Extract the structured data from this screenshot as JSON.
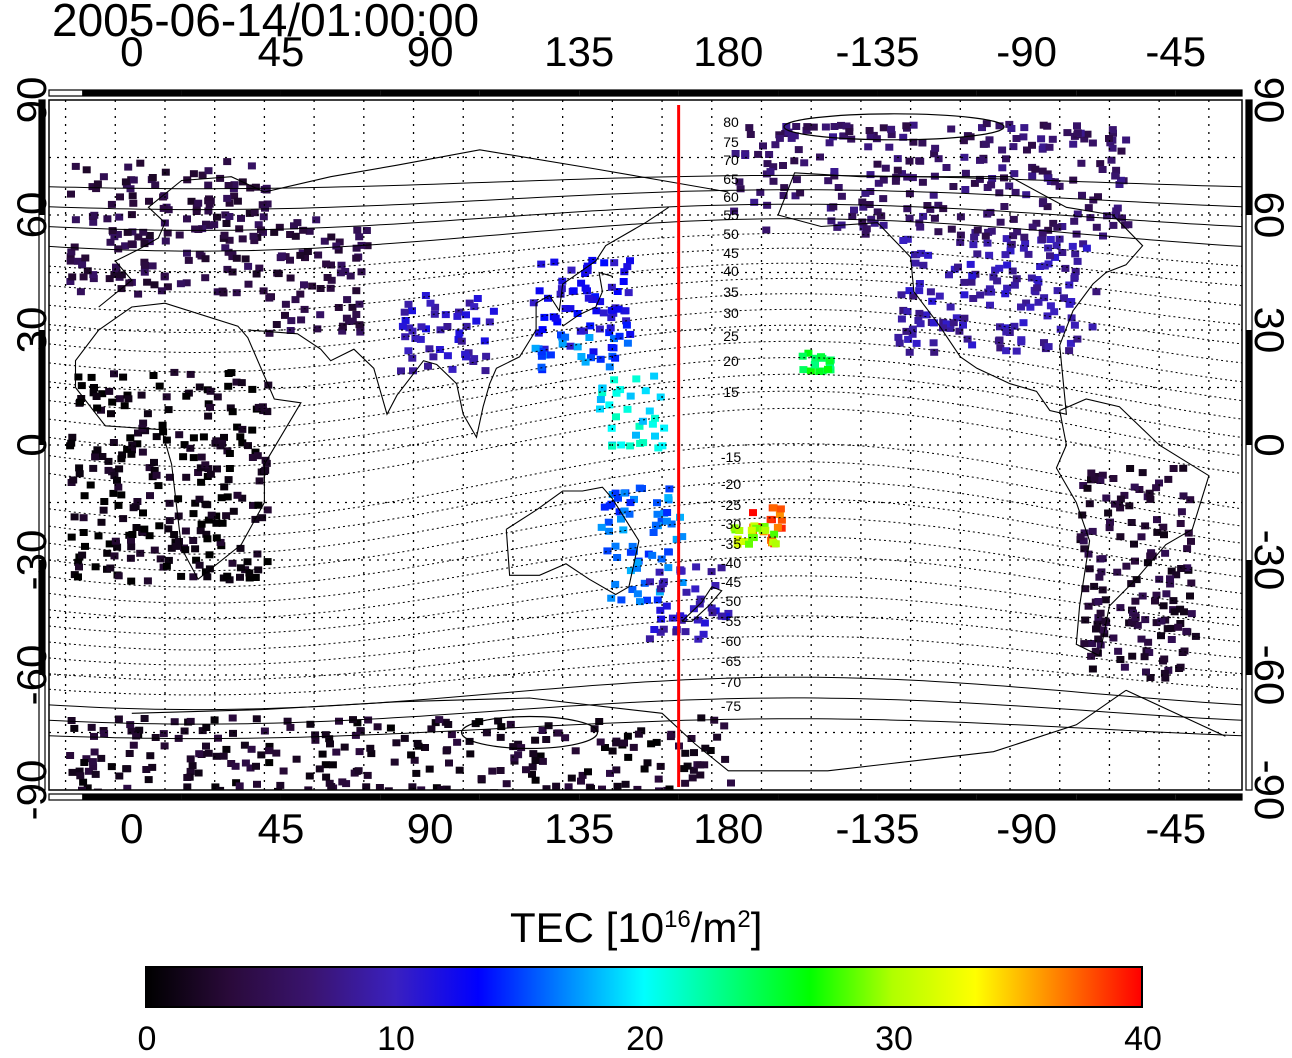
{
  "title": "2005-06-14/01:00:00",
  "map": {
    "projection": "equirectangular",
    "lon_ticks": [
      "0",
      "45",
      "90",
      "135",
      "180",
      "-135",
      "-90",
      "-45"
    ],
    "lat_ticks": [
      "90",
      "60",
      "30",
      "0",
      "-30",
      "-60",
      "-90"
    ],
    "meridian_marker_lon": 165,
    "meridian_marker_color": "#ff0000",
    "contour_labels": [
      "80",
      "75",
      "70",
      "65",
      "60",
      "55",
      "50",
      "45",
      "40",
      "35",
      "30",
      "25",
      "20",
      "15",
      "-15",
      "-20",
      "-25",
      "-30",
      "-35",
      "-40",
      "-45",
      "-50",
      "-55",
      "-60",
      "-65",
      "-70",
      "-75"
    ]
  },
  "colorbar": {
    "label_main": "TEC  [10",
    "label_exp": "16",
    "label_unit": "/m",
    "label_exp2": "2",
    "label_close": "]",
    "min": 0,
    "max": 40,
    "ticks": [
      "0",
      "10",
      "20",
      "30",
      "40"
    ],
    "colormap": [
      "#000000",
      "#2a0a3a",
      "#3a1470",
      "#3a20c0",
      "#0000ff",
      "#0080ff",
      "#00ffff",
      "#00ff80",
      "#00ff00",
      "#b0ff00",
      "#ffff00",
      "#ff8000",
      "#ff0000"
    ]
  },
  "chart_data": {
    "type": "heatmap",
    "title": "2005-06-14/01:00:00",
    "quantity": "TEC",
    "unit": "10^16/m^2",
    "value_range": [
      0,
      40
    ],
    "regions": [
      {
        "lon_range": [
          -20,
          40
        ],
        "lat_range": [
          40,
          75
        ],
        "tec": 4
      },
      {
        "lon_range": [
          40,
          70
        ],
        "lat_range": [
          30,
          60
        ],
        "tec": 4
      },
      {
        "lon_range": [
          80,
          110
        ],
        "lat_range": [
          20,
          40
        ],
        "tec": 10
      },
      {
        "lon_range": [
          120,
          150
        ],
        "lat_range": [
          25,
          50
        ],
        "tec": 12
      },
      {
        "lon_range": [
          120,
          150
        ],
        "lat_range": [
          20,
          30
        ],
        "tec": 16
      },
      {
        "lon_range": [
          140,
          160
        ],
        "lat_range": [
          0,
          20
        ],
        "tec": 20
      },
      {
        "lon_range": [
          140,
          165
        ],
        "lat_range": [
          -40,
          -10
        ],
        "tec": 16
      },
      {
        "lon_range": [
          155,
          180
        ],
        "lat_range": [
          -50,
          -30
        ],
        "tec": 10
      },
      {
        "lon_range": [
          185,
          195
        ],
        "lat_range": [
          -25,
          -15
        ],
        "tec": 38
      },
      {
        "lon_range": [
          180,
          195
        ],
        "lat_range": [
          -25,
          -20
        ],
        "tec": 30
      },
      {
        "lon_range": [
          -160,
          -150
        ],
        "lat_range": [
          20,
          25
        ],
        "tec": 25
      },
      {
        "lon_range": [
          -130,
          -70
        ],
        "lat_range": [
          25,
          55
        ],
        "tec": 9
      },
      {
        "lon_range": [
          -180,
          -60
        ],
        "lat_range": [
          55,
          85
        ],
        "tec": 6
      },
      {
        "lon_range": [
          -75,
          -40
        ],
        "lat_range": [
          -60,
          -5
        ],
        "tec": 3
      },
      {
        "lon_range": [
          -20,
          40
        ],
        "lat_range": [
          -35,
          20
        ],
        "tec": 1
      },
      {
        "lon_range": [
          -20,
          180
        ],
        "lat_range": [
          -90,
          -70
        ],
        "tec": 2
      }
    ]
  }
}
